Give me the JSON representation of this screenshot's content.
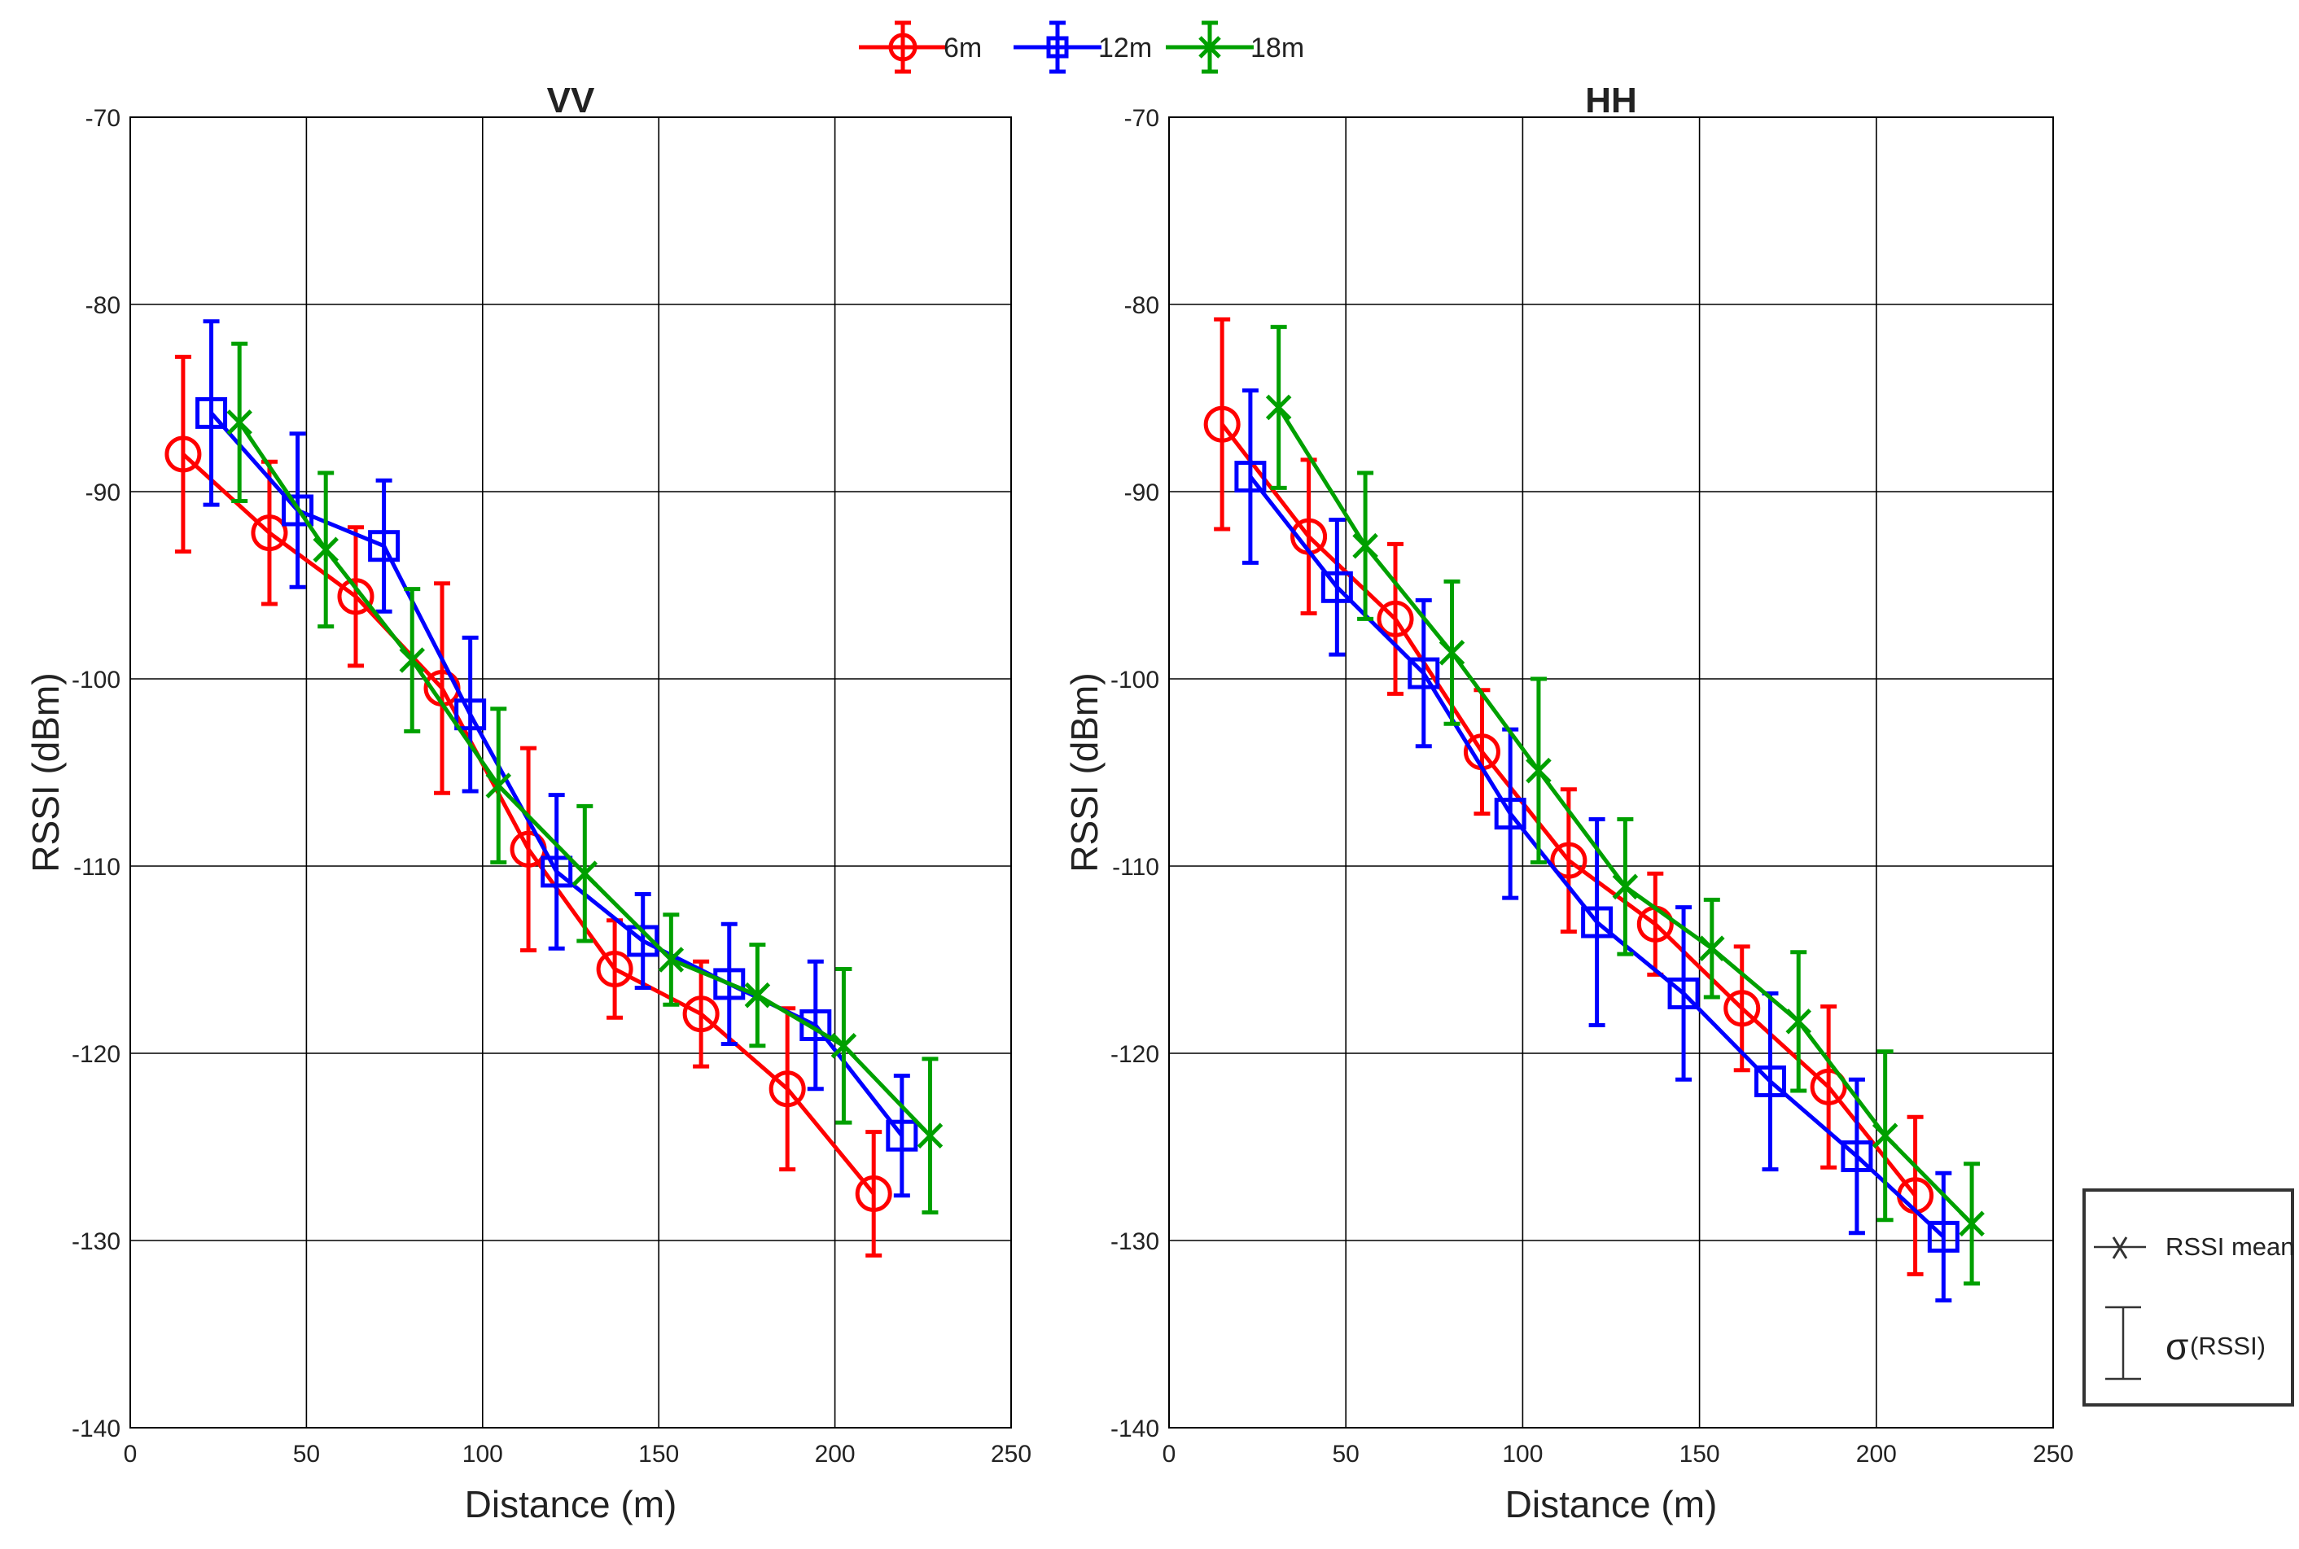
{
  "chart_data": {
    "type": "line",
    "legend_position": "top-center",
    "series_styles": [
      {
        "name": "6m",
        "color": "#ff0000",
        "marker": "circle"
      },
      {
        "name": "12m",
        "color": "#0000ff",
        "marker": "square"
      },
      {
        "name": "18m",
        "color": "#00a000",
        "marker": "x"
      }
    ],
    "key": {
      "mean_label": "RSSI mean",
      "sigma_symbol": "σ",
      "sigma_label": "(RSSI)"
    },
    "panels": [
      {
        "title": "VV",
        "xlabel": "Distance (m)",
        "ylabel": "RSSI (dBm)",
        "xlim": [
          0,
          250
        ],
        "ylim": [
          -140,
          -70
        ],
        "xticks": [
          0,
          50,
          100,
          150,
          200,
          250
        ],
        "yticks": [
          -140,
          -130,
          -120,
          -110,
          -100,
          -90,
          -80,
          -70
        ],
        "grid": true,
        "series": [
          {
            "name": "6m",
            "x": [
              15,
              39.5,
              64,
              88.5,
              113,
              137.5,
              162,
              186.5,
              211
            ],
            "y": [
              -88,
              -92.2,
              -95.6,
              -100.5,
              -109.1,
              -115.5,
              -117.9,
              -121.9,
              -127.5
            ],
            "err": [
              5.2,
              3.8,
              3.7,
              5.6,
              5.4,
              2.6,
              2.8,
              4.3,
              3.3
            ]
          },
          {
            "name": "12m",
            "x": [
              23,
              47.5,
              72,
              96.5,
              121,
              145.5,
              170,
              194.5,
              219
            ],
            "y": [
              -85.8,
              -91,
              -92.9,
              -101.9,
              -110.3,
              -114,
              -116.3,
              -118.5,
              -124.4
            ],
            "err": [
              4.9,
              4.1,
              3.5,
              4.1,
              4.1,
              2.5,
              3.2,
              3.4,
              3.2
            ]
          },
          {
            "name": "18m",
            "x": [
              31,
              55.5,
              80,
              104.5,
              129,
              153.5,
              178,
              202.5,
              227
            ],
            "y": [
              -86.3,
              -93.1,
              -99,
              -105.7,
              -110.4,
              -115,
              -116.9,
              -119.6,
              -124.4
            ],
            "err": [
              4.2,
              4.1,
              3.8,
              4.1,
              3.6,
              2.4,
              2.7,
              4.1,
              4.1
            ]
          }
        ]
      },
      {
        "title": "HH",
        "xlabel": "Distance (m)",
        "ylabel": "RSSI (dBm)",
        "xlim": [
          0,
          250
        ],
        "ylim": [
          -140,
          -70
        ],
        "xticks": [
          0,
          50,
          100,
          150,
          200,
          250
        ],
        "yticks": [
          -140,
          -130,
          -120,
          -110,
          -100,
          -90,
          -80,
          -70
        ],
        "grid": true,
        "series": [
          {
            "name": "6m",
            "x": [
              15,
              39.5,
              64,
              88.5,
              113,
              137.5,
              162,
              186.5,
              211
            ],
            "y": [
              -86.4,
              -92.4,
              -96.8,
              -103.9,
              -109.7,
              -113.1,
              -117.6,
              -121.8,
              -127.6
            ],
            "err": [
              5.6,
              4.1,
              4.0,
              3.3,
              3.8,
              2.7,
              3.3,
              4.3,
              4.2
            ]
          },
          {
            "name": "12m",
            "x": [
              23,
              47.5,
              72,
              96.5,
              121,
              145.5,
              170,
              194.5,
              219
            ],
            "y": [
              -89.2,
              -95.1,
              -99.7,
              -107.2,
              -113,
              -116.8,
              -121.5,
              -125.5,
              -129.8
            ],
            "err": [
              4.6,
              3.6,
              3.9,
              4.5,
              5.5,
              4.6,
              4.7,
              4.1,
              3.4
            ]
          },
          {
            "name": "18m",
            "x": [
              31,
              55.5,
              80,
              104.5,
              129,
              153.5,
              178,
              202.5,
              227
            ],
            "y": [
              -85.5,
              -92.9,
              -98.6,
              -104.9,
              -111.1,
              -114.4,
              -118.3,
              -124.4,
              -129.1
            ],
            "err": [
              4.3,
              3.9,
              3.8,
              4.9,
              3.6,
              2.6,
              3.7,
              4.5,
              3.2
            ]
          }
        ]
      }
    ]
  }
}
